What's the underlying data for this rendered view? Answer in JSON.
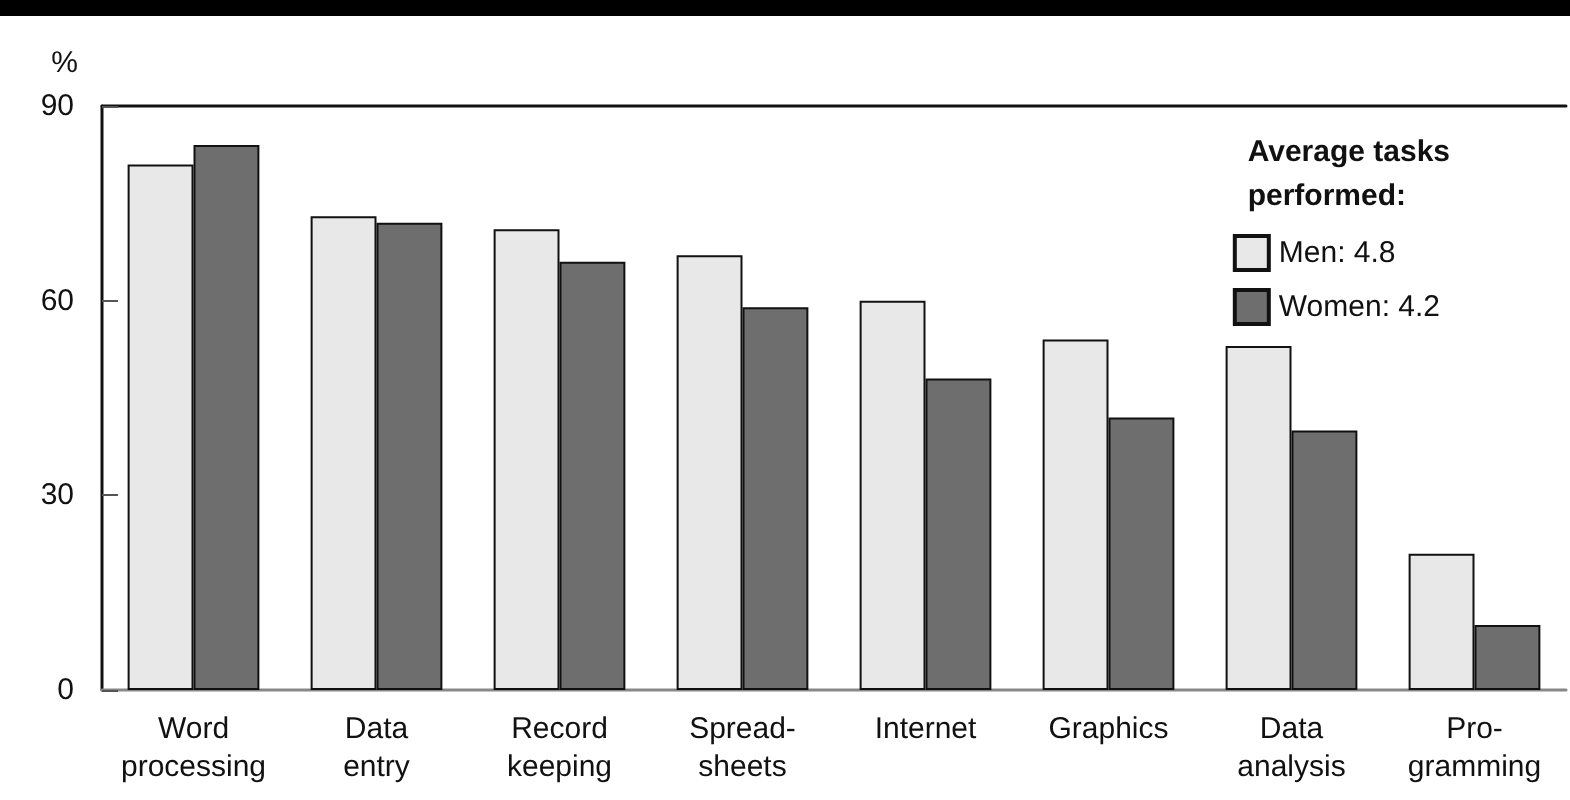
{
  "chart_data": {
    "type": "bar",
    "ylabel": "%",
    "legend_title": "Average tasks performed:",
    "categories": [
      "Word\nprocessing",
      "Data\nentry",
      "Record\nkeeping",
      "Spread-\nsheets",
      "Internet",
      "Graphics",
      "Data\nanalysis",
      "Pro-\ngramming"
    ],
    "series": [
      {
        "name": "Men: 4.8",
        "color": "#e8e8e8",
        "values": [
          81,
          73,
          71,
          67,
          60,
          54,
          53,
          21
        ]
      },
      {
        "name": "Women: 4.2",
        "color": "#6e6e6e",
        "values": [
          84,
          72,
          66,
          59,
          48,
          42,
          40,
          10
        ]
      }
    ],
    "ylim": [
      0,
      90
    ],
    "yticks": [
      0,
      30,
      60,
      90
    ],
    "grid": false,
    "legend": "top right"
  }
}
